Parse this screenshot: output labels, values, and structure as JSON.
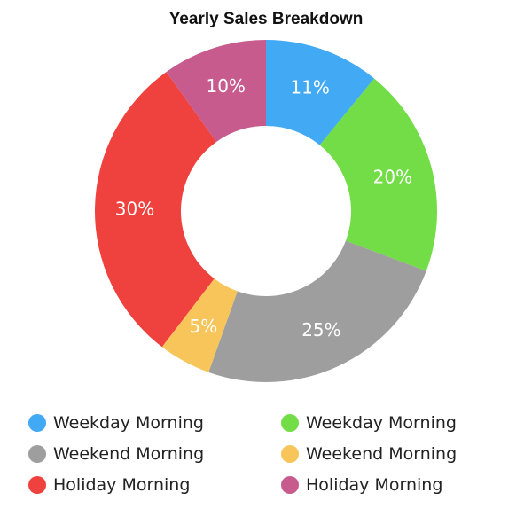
{
  "chart_data": {
    "type": "pie",
    "variant": "donut",
    "title": "Yearly Sales Breakdown",
    "slices": [
      {
        "label": "Weekday Morning",
        "value": 11,
        "display": "11%",
        "color": "#42a9f5"
      },
      {
        "label": "Weekday Morning",
        "value": 20,
        "display": "20%",
        "color": "#72dd46"
      },
      {
        "label": "Weekend Morning",
        "value": 25,
        "display": "25%",
        "color": "#9e9e9e"
      },
      {
        "label": "Weekend Morning",
        "value": 5,
        "display": "5%",
        "color": "#f8c55a"
      },
      {
        "label": "Holiday Morning",
        "value": 30,
        "display": "30%",
        "color": "#ef413d"
      },
      {
        "label": "Holiday Morning",
        "value": 10,
        "display": "10%",
        "color": "#c75b8e"
      }
    ],
    "legend_position": "bottom"
  }
}
